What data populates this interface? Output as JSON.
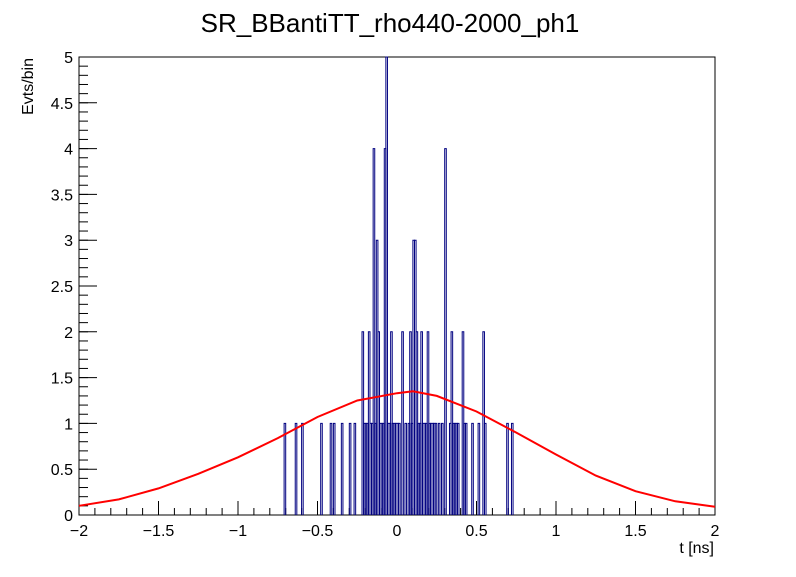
{
  "chart_data": {
    "type": "histogram",
    "title": "SR_BBantiTT_rho440-2000_ph1",
    "xlabel": "t [ns]",
    "ylabel": "Evts/bin",
    "xlim": [
      -2,
      2
    ],
    "ylim": [
      0,
      5
    ],
    "xticks": [
      -2,
      -1.5,
      -1,
      -0.5,
      0,
      0.5,
      1,
      1.5,
      2
    ],
    "xtick_labels": [
      "−2",
      "−1.5",
      "−1",
      "−0.5",
      "0",
      "0.5",
      "1",
      "1.5",
      "2"
    ],
    "yticks": [
      0,
      0.5,
      1,
      1.5,
      2,
      2.5,
      3,
      3.5,
      4,
      4.5,
      5
    ],
    "ytick_labels": [
      "0",
      "0.5",
      "1",
      "1.5",
      "2",
      "2.5",
      "3",
      "3.5",
      "4",
      "4.5",
      "5"
    ],
    "grid": false,
    "histogram": {
      "color": "#000080",
      "bin_width": 0.01,
      "bins": [
        {
          "x": -0.71,
          "y": 1
        },
        {
          "x": -0.64,
          "y": 1
        },
        {
          "x": -0.6,
          "y": 1
        },
        {
          "x": -0.48,
          "y": 1
        },
        {
          "x": -0.42,
          "y": 1
        },
        {
          "x": -0.4,
          "y": 1
        },
        {
          "x": -0.35,
          "y": 1
        },
        {
          "x": -0.3,
          "y": 1
        },
        {
          "x": -0.27,
          "y": 1
        },
        {
          "x": -0.22,
          "y": 2
        },
        {
          "x": -0.21,
          "y": 1
        },
        {
          "x": -0.2,
          "y": 1
        },
        {
          "x": -0.19,
          "y": 1
        },
        {
          "x": -0.18,
          "y": 2
        },
        {
          "x": -0.17,
          "y": 1
        },
        {
          "x": -0.16,
          "y": 1
        },
        {
          "x": -0.15,
          "y": 4
        },
        {
          "x": -0.14,
          "y": 1
        },
        {
          "x": -0.13,
          "y": 3
        },
        {
          "x": -0.12,
          "y": 2
        },
        {
          "x": -0.11,
          "y": 1
        },
        {
          "x": -0.1,
          "y": 1
        },
        {
          "x": -0.09,
          "y": 1
        },
        {
          "x": -0.08,
          "y": 4
        },
        {
          "x": -0.07,
          "y": 5
        },
        {
          "x": -0.06,
          "y": 1
        },
        {
          "x": -0.05,
          "y": 1
        },
        {
          "x": -0.04,
          "y": 2
        },
        {
          "x": -0.03,
          "y": 1
        },
        {
          "x": -0.02,
          "y": 1
        },
        {
          "x": -0.01,
          "y": 1
        },
        {
          "x": 0.0,
          "y": 1
        },
        {
          "x": 0.01,
          "y": 1
        },
        {
          "x": 0.03,
          "y": 2
        },
        {
          "x": 0.05,
          "y": 1
        },
        {
          "x": 0.07,
          "y": 1
        },
        {
          "x": 0.08,
          "y": 2
        },
        {
          "x": 0.09,
          "y": 1
        },
        {
          "x": 0.1,
          "y": 3
        },
        {
          "x": 0.11,
          "y": 3
        },
        {
          "x": 0.12,
          "y": 2
        },
        {
          "x": 0.13,
          "y": 1
        },
        {
          "x": 0.14,
          "y": 1
        },
        {
          "x": 0.15,
          "y": 2
        },
        {
          "x": 0.16,
          "y": 1
        },
        {
          "x": 0.17,
          "y": 1
        },
        {
          "x": 0.18,
          "y": 1
        },
        {
          "x": 0.19,
          "y": 2
        },
        {
          "x": 0.2,
          "y": 1
        },
        {
          "x": 0.21,
          "y": 1
        },
        {
          "x": 0.22,
          "y": 1
        },
        {
          "x": 0.23,
          "y": 1
        },
        {
          "x": 0.24,
          "y": 1
        },
        {
          "x": 0.26,
          "y": 1
        },
        {
          "x": 0.28,
          "y": 1
        },
        {
          "x": 0.3,
          "y": 4
        },
        {
          "x": 0.33,
          "y": 1
        },
        {
          "x": 0.34,
          "y": 2
        },
        {
          "x": 0.35,
          "y": 1
        },
        {
          "x": 0.36,
          "y": 1
        },
        {
          "x": 0.37,
          "y": 1
        },
        {
          "x": 0.38,
          "y": 1
        },
        {
          "x": 0.41,
          "y": 2
        },
        {
          "x": 0.42,
          "y": 1
        },
        {
          "x": 0.43,
          "y": 1
        },
        {
          "x": 0.47,
          "y": 1
        },
        {
          "x": 0.51,
          "y": 1
        },
        {
          "x": 0.54,
          "y": 2
        },
        {
          "x": 0.55,
          "y": 1
        },
        {
          "x": 0.69,
          "y": 1
        },
        {
          "x": 0.72,
          "y": 1
        }
      ]
    },
    "fit_curve": {
      "color": "#ff0000",
      "x": [
        -2,
        -1.75,
        -1.5,
        -1.25,
        -1,
        -0.75,
        -0.5,
        -0.25,
        0,
        0.1,
        0.25,
        0.5,
        0.75,
        1,
        1.25,
        1.5,
        1.75,
        2
      ],
      "y": [
        0.1,
        0.17,
        0.29,
        0.45,
        0.63,
        0.84,
        1.07,
        1.25,
        1.33,
        1.35,
        1.3,
        1.13,
        0.9,
        0.66,
        0.43,
        0.26,
        0.15,
        0.09
      ]
    }
  }
}
